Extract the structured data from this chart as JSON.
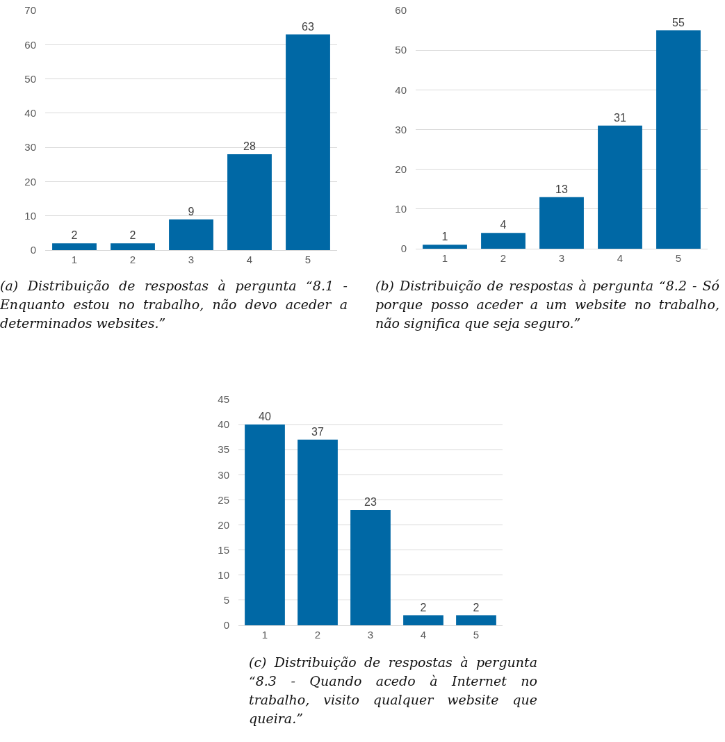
{
  "chart_data": [
    {
      "type": "bar",
      "categories": [
        "1",
        "2",
        "3",
        "4",
        "5"
      ],
      "values": [
        2,
        2,
        9,
        28,
        63
      ],
      "color": "#0068a5",
      "ylim": [
        0,
        70
      ],
      "yticks": [
        0,
        10,
        20,
        30,
        40,
        50,
        60,
        70
      ],
      "grid": "y",
      "data_labels": true,
      "legend": false,
      "annotations": [
        "(a) Distribuição de respostas à pergunta “8.1 - Enquanto estou no trabalho, não devo aceder a determinados websites.”"
      ]
    },
    {
      "type": "bar",
      "categories": [
        "1",
        "2",
        "3",
        "4",
        "5"
      ],
      "values": [
        1,
        4,
        13,
        31,
        55
      ],
      "color": "#0068a5",
      "ylim": [
        0,
        60
      ],
      "yticks": [
        0,
        10,
        20,
        30,
        40,
        50,
        60
      ],
      "grid": "y",
      "data_labels": true,
      "legend": false,
      "annotations": [
        "(b) Distribuição de respostas à pergunta “8.2 - Só porque posso aceder a um website no trabalho, não significa que seja seguro.”"
      ]
    },
    {
      "type": "bar",
      "categories": [
        "1",
        "2",
        "3",
        "4",
        "5"
      ],
      "values": [
        40,
        37,
        23,
        2,
        2
      ],
      "color": "#0068a5",
      "ylim": [
        0,
        45
      ],
      "yticks": [
        0,
        5,
        10,
        15,
        20,
        25,
        30,
        35,
        40,
        45
      ],
      "grid": "y",
      "data_labels": true,
      "legend": false,
      "annotations": [
        "(c) Distribuição de respostas à pergunta “8.3 - Quando acedo à Internet no trabalho, visito qualquer website que queira.”"
      ]
    }
  ]
}
